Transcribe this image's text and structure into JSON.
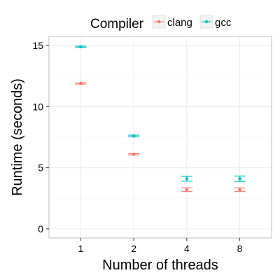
{
  "chart_data": {
    "type": "scatter",
    "xlabel": "Number of threads",
    "ylabel": "Runtime (seconds)",
    "categories": [
      "1",
      "2",
      "4",
      "8"
    ],
    "ylim": [
      -0.75,
      15.75
    ],
    "y_ticks": [
      "0",
      "5",
      "10",
      "15"
    ],
    "grid": true,
    "legend": {
      "title": "Compiler",
      "position": "top"
    },
    "series": [
      {
        "name": "clang",
        "color": "#F8766D",
        "values": [
          11.9,
          6.1,
          3.2,
          3.2
        ],
        "error_low": [
          11.85,
          6.05,
          3.05,
          3.05
        ],
        "error_high": [
          11.95,
          6.15,
          3.35,
          3.35
        ]
      },
      {
        "name": "gcc",
        "color": "#00BFC4",
        "values": [
          14.9,
          7.6,
          4.1,
          4.1
        ],
        "error_low": [
          14.85,
          7.53,
          3.9,
          3.88
        ],
        "error_high": [
          14.95,
          7.67,
          4.3,
          4.32
        ]
      }
    ]
  }
}
